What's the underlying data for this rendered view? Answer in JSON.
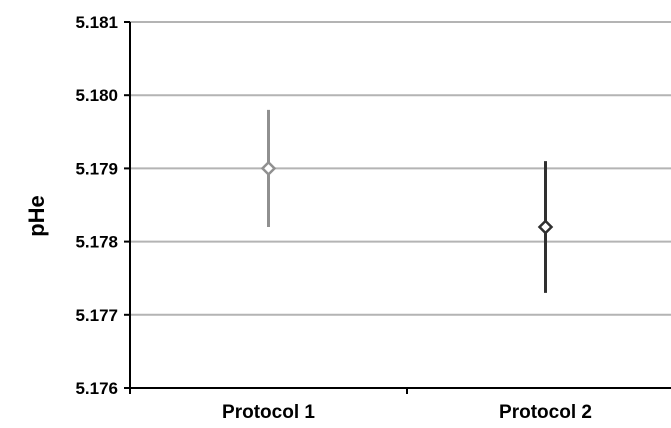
{
  "chart_data": {
    "type": "scatter",
    "ylabel": "pHe",
    "xlabel": "",
    "ylim": [
      5.176,
      5.181
    ],
    "yticks": [
      "5.181",
      "5.180",
      "5.179",
      "5.178",
      "5.177",
      "5.176"
    ],
    "categories": [
      "Protocol 1",
      "Protocol 2"
    ],
    "points": [
      {
        "category": "Protocol 1",
        "value": 5.179,
        "error_low": 5.1782,
        "error_high": 5.1798,
        "color": "#909090"
      },
      {
        "category": "Protocol 2",
        "value": 5.1782,
        "error_low": 5.1773,
        "error_high": 5.1791,
        "color": "#303030"
      }
    ],
    "grid": true,
    "legend": "none"
  }
}
